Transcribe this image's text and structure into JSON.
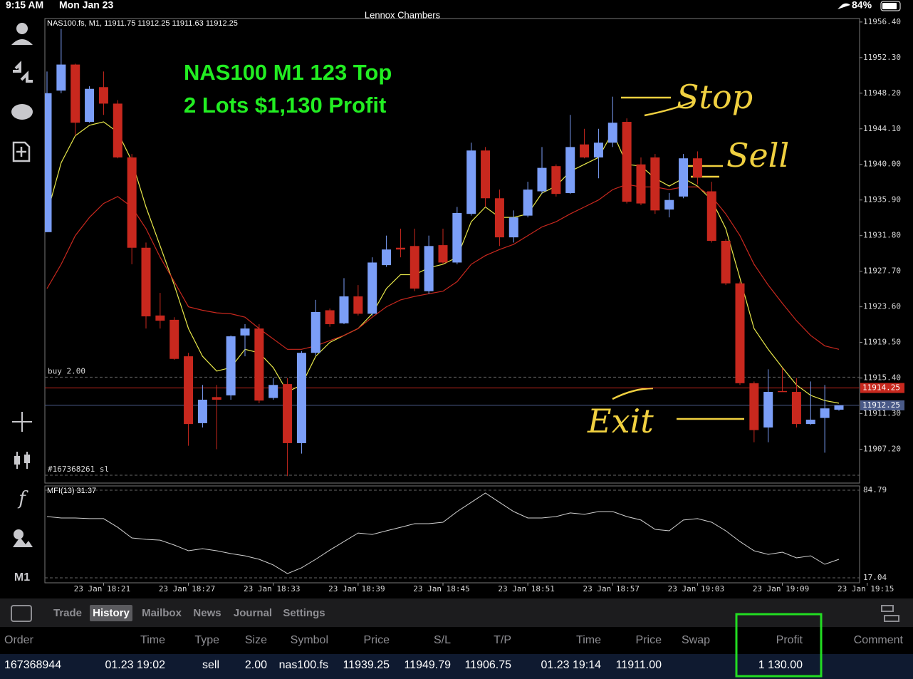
{
  "status_bar": {
    "time": "9:15 AM",
    "date": "Mon Jan 23",
    "battery": "84%"
  },
  "app_title": "Lennox Chambers",
  "toolbar": {
    "timeframe": "M1"
  },
  "chart_data": {
    "type": "candlestick",
    "header": "NAS100.fs, M1, 11911.75 11912.25 11911.63 11912.25",
    "annotations": [
      "NAS100 M1 123 Top",
      "2 Lots $1,130 Profit"
    ],
    "handwriting": [
      "Stop",
      "Sell",
      "Exit"
    ],
    "up_color": "#7b9ef7",
    "down_color": "#c8281e",
    "open": [
      11932.2,
      11948.5,
      11951.5,
      11944.9,
      11948.9,
      11947.0,
      11940.8,
      11930.4,
      11922.6,
      11922.1,
      11917.9,
      11910.2,
      11913.2,
      11913.4,
      11920.3,
      11921.1,
      11913.1,
      11914.7,
      11907.9,
      11918.3,
      11923.2,
      11921.7,
      11924.8,
      11922.8,
      11928.4,
      11930.4,
      11930.6,
      11925.4,
      11930.7,
      11928.7,
      11934.3,
      11941.6,
      11936.1,
      11931.6,
      11934.1,
      11936.9,
      11939.8,
      11936.7,
      11942.3,
      11940.8,
      11942.5,
      11944.9,
      11940.0,
      11940.8,
      11934.8,
      11936.3,
      11940.7,
      11936.9,
      11931.2,
      11926.3,
      11914.8,
      11909.7,
      11913.9,
      11913.8,
      11910.1,
      11910.8,
      11911.75
    ],
    "high": [
      11950.7,
      11955.6,
      11951.6,
      11949.0,
      11950.7,
      11947.4,
      11941.2,
      11931.0,
      11925.2,
      11922.4,
      11918.3,
      11914.6,
      11914.6,
      11920.3,
      11921.6,
      11921.6,
      11915.4,
      11915.4,
      11918.5,
      11924.4,
      11923.4,
      11926.9,
      11926.1,
      11929.3,
      11931.8,
      11932.6,
      11932.6,
      11931.8,
      11932.6,
      11935.1,
      11942.5,
      11942.0,
      11937.1,
      11934.7,
      11938.0,
      11942.0,
      11940.0,
      11945.7,
      11944.1,
      11944.1,
      11947.8,
      11945.3,
      11940.8,
      11941.2,
      11936.7,
      11941.2,
      11941.5,
      11938.0,
      11931.4,
      11926.5,
      11915.0,
      11916.4,
      11916.6,
      11915.4,
      11915.0,
      11914.6,
      11912.25
    ],
    "low": [
      11932.2,
      11948.2,
      11943.3,
      11944.8,
      11945.7,
      11940.7,
      11928.5,
      11921.1,
      11921.1,
      11917.5,
      11907.6,
      11909.7,
      11907.2,
      11912.9,
      11917.9,
      11912.5,
      11912.9,
      11904.1,
      11906.7,
      11918.0,
      11921.3,
      11921.6,
      11922.6,
      11922.6,
      11928.2,
      11929.3,
      11925.4,
      11925.1,
      11928.5,
      11928.5,
      11934.1,
      11935.1,
      11930.6,
      11931.0,
      11933.9,
      11936.6,
      11936.3,
      11936.6,
      11940.7,
      11938.4,
      11942.0,
      11935.5,
      11935.3,
      11934.3,
      11933.9,
      11936.1,
      11937.7,
      11931.0,
      11926.1,
      11914.6,
      11908.0,
      11908.0,
      11913.8,
      11909.7,
      11910.0,
      11906.8,
      11911.63
    ],
    "close": [
      11948.2,
      11951.5,
      11944.8,
      11948.7,
      11947.0,
      11940.8,
      11930.4,
      11922.5,
      11922.0,
      11917.6,
      11910.1,
      11912.9,
      11912.9,
      11920.2,
      11921.1,
      11912.8,
      11914.6,
      11907.9,
      11918.3,
      11923.0,
      11921.6,
      11924.8,
      11922.8,
      11928.7,
      11930.2,
      11930.2,
      11925.7,
      11930.6,
      11928.7,
      11934.4,
      11941.6,
      11936.1,
      11931.6,
      11933.9,
      11937.1,
      11939.6,
      11936.6,
      11942.0,
      11940.8,
      11942.5,
      11944.8,
      11935.7,
      11935.5,
      11934.7,
      11935.9,
      11940.7,
      11938.5,
      11931.2,
      11926.3,
      11914.8,
      11909.4,
      11913.8,
      11913.8,
      11910.1,
      11910.6,
      11911.9,
      11912.25
    ],
    "ma_series": [
      {
        "color": "#e8e84a",
        "values": [
          11934.3,
          11940.2,
          11943.3,
          11944.5,
          11944.9,
          11943.7,
          11940.4,
          11935.1,
          11930.6,
          11926.1,
          11921.1,
          11917.9,
          11916.2,
          11916.6,
          11918.7,
          11918.3,
          11916.6,
          11913.8,
          11914.6,
          11917.9,
          11919.5,
          11920.3,
          11921.1,
          11922.8,
          11925.7,
          11927.3,
          11927.3,
          11928.1,
          11928.5,
          11929.3,
          11933.4,
          11935.1,
          11933.9,
          11933.9,
          11934.3,
          11936.7,
          11937.5,
          11939.2,
          11940.0,
          11940.8,
          11943.7,
          11940.0,
          11939.8,
          11938.4,
          11937.5,
          11938.4,
          11937.5,
          11935.9,
          11932.6,
          11926.9,
          11921.1,
          11918.7,
          11916.6,
          11914.6,
          11913.4,
          11912.8,
          11912.5
        ]
      },
      {
        "color": "#c8281e",
        "values": [
          11925.7,
          11928.5,
          11931.8,
          11933.9,
          11935.5,
          11936.3,
          11935.1,
          11932.6,
          11929.3,
          11926.5,
          11923.6,
          11923.2,
          11922.9,
          11922.8,
          11922.4,
          11921.1,
          11919.9,
          11918.7,
          11918.7,
          11919.1,
          11919.7,
          11920.3,
          11921.1,
          11922.4,
          11923.6,
          11924.4,
          11924.8,
          11925.1,
          11925.4,
          11926.5,
          11928.5,
          11929.5,
          11930.2,
          11930.8,
          11931.8,
          11932.8,
          11933.4,
          11934.3,
          11935.1,
          11935.9,
          11937.1,
          11937.7,
          11937.4,
          11937.4,
          11937.1,
          11937.4,
          11937.4,
          11936.3,
          11934.3,
          11931.8,
          11928.5,
          11926.1,
          11924.0,
          11922.0,
          11920.3,
          11919.1,
          11918.7
        ]
      }
    ],
    "ylim": [
      11903.3,
      11956.8
    ],
    "yticks": [
      {
        "value": 11956.4,
        "label": "11956.40"
      },
      {
        "value": 11952.3,
        "label": "11952.30"
      },
      {
        "value": 11948.2,
        "label": "11948.20"
      },
      {
        "value": 11944.1,
        "label": "11944.10"
      },
      {
        "value": 11940,
        "label": "11940.00"
      },
      {
        "value": 11935.9,
        "label": "11935.90"
      },
      {
        "value": 11931.8,
        "label": "11931.80"
      },
      {
        "value": 11927.7,
        "label": "11927.70"
      },
      {
        "value": 11923.6,
        "label": "11923.60"
      },
      {
        "value": 11919.5,
        "label": "11919.50"
      },
      {
        "value": 11915.4,
        "label": "11915.40"
      },
      {
        "value": 11911.3,
        "label": "11911.30"
      },
      {
        "value": 11907.2,
        "label": "11907.20"
      }
    ],
    "grid": false,
    "price_lines": [
      {
        "value": 11914.25,
        "color": "#c8281e"
      },
      {
        "value": 11912.25,
        "color": "#4a5a88"
      }
    ],
    "order_lines": [
      {
        "label": "buy 2.00",
        "value": 11915.5
      },
      {
        "label": "#167368261 sl",
        "value": 11904.2
      }
    ],
    "xticks": [
      {
        "value": 4,
        "label": "23 Jan 18:21"
      },
      {
        "value": 10,
        "label": "23 Jan 18:27"
      },
      {
        "value": 16,
        "label": "23 Jan 18:33"
      },
      {
        "value": 22,
        "label": "23 Jan 18:39"
      },
      {
        "value": 28,
        "label": "23 Jan 18:45"
      },
      {
        "value": 34,
        "label": "23 Jan 18:51"
      },
      {
        "value": 40,
        "label": "23 Jan 18:57"
      },
      {
        "value": 46,
        "label": "23 Jan 19:03"
      },
      {
        "value": 52,
        "label": "23 Jan 19:09"
      },
      {
        "value": 58,
        "label": "23 Jan 19:15"
      }
    ],
    "indicator": {
      "title": "MFI(13) 31.37",
      "color": "#d0d0d0",
      "values": [
        64.4,
        63.3,
        63.3,
        62.8,
        62.8,
        56.1,
        47.9,
        46.8,
        46.2,
        42.4,
        38.0,
        39.6,
        38.0,
        35.8,
        34.1,
        31.4,
        27.0,
        20.3,
        24.8,
        31.4,
        38.5,
        45.1,
        51.7,
        50.6,
        53.4,
        56.1,
        58.9,
        58.9,
        60.0,
        68.3,
        75.4,
        82.6,
        75.4,
        68.3,
        63.3,
        63.3,
        64.4,
        67.2,
        66.1,
        68.3,
        68.3,
        64.4,
        61.7,
        54.5,
        53.4,
        61.7,
        62.8,
        60.0,
        53.4,
        45.1,
        38.0,
        35.2,
        36.9,
        32.5,
        34.1,
        27.5,
        31.37
      ],
      "ylim": [
        13.2,
        88.1
      ],
      "yticks": [
        84.79,
        17.04
      ]
    }
  },
  "tabs": {
    "items": [
      "Trade",
      "History",
      "Mailbox",
      "News",
      "Journal",
      "Settings"
    ],
    "active": 1
  },
  "table": {
    "columns": [
      "Order",
      "Time",
      "Type",
      "Size",
      "Symbol",
      "Price",
      "S/L",
      "T/P",
      "Time",
      "Price",
      "Swap",
      "Profit",
      "Comment"
    ],
    "rows": [
      [
        "167368944",
        "01.23 19:02",
        "sell",
        "2.00",
        "nas100.fs",
        "11939.25",
        "11949.79",
        "11906.75",
        "01.23 19:14",
        "11911.00",
        null,
        "1 130.00",
        null
      ]
    ]
  }
}
